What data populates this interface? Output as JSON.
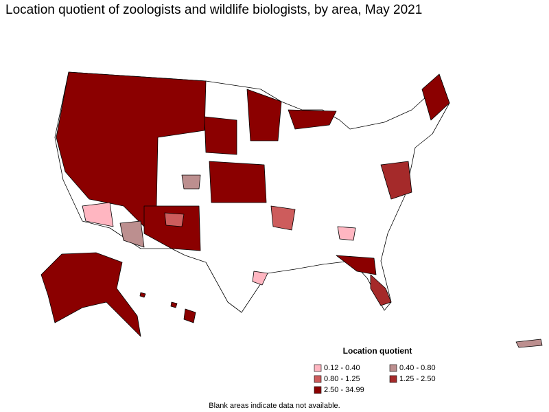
{
  "title": "Location quotient of zoologists and wildlife biologists, by area, May 2021",
  "legend": {
    "title": "Location quotient",
    "items": [
      {
        "label": "0.12 - 0.40",
        "color": "#ffb6c1"
      },
      {
        "label": "0.40 - 0.80",
        "color": "#bc8f8f"
      },
      {
        "label": "0.80 - 1.25",
        "color": "#cd5c5c"
      },
      {
        "label": "1.25 - 2.50",
        "color": "#a52a2a"
      },
      {
        "label": "2.50 - 34.99",
        "color": "#8b0000"
      }
    ]
  },
  "footnote": "Blank areas indicate data not available."
}
